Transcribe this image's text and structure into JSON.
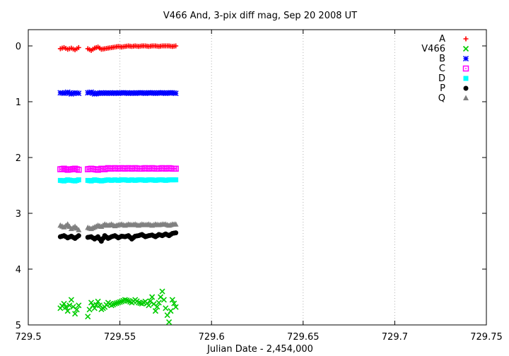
{
  "chart_data": {
    "type": "scatter",
    "title": "V466 And,  3-pix diff mag, Sep 20 2008 UT",
    "xlabel": "Julian Date - 2,454,000",
    "ylabel": "",
    "xlim": [
      729.5,
      729.75
    ],
    "ylim": [
      5,
      0
    ],
    "y_inverted": true,
    "grid": true,
    "legend_position": "top-right",
    "x_ticks": [
      "729.5",
      "729.55",
      "729.6",
      "729.65",
      "729.7",
      "729.75"
    ],
    "y_ticks": [
      "0",
      "1",
      "2",
      "3",
      "4",
      "5"
    ],
    "series": [
      {
        "name": "A",
        "color": "#ff0000",
        "marker": "plus",
        "x_start": 729.5175,
        "x_end": 729.5805,
        "gap": [
          729.5275,
          729.5325
        ],
        "y": [
          0.05,
          0.03,
          0.06,
          0.04,
          0.07,
          0.03,
          0.05,
          0.08,
          0.04,
          0.02,
          0.06,
          0.05,
          0.04,
          0.03,
          0.02,
          0.01,
          0.02,
          0.01,
          0.0,
          0.01,
          0.0,
          0.01,
          0.0,
          0.0,
          0.01,
          0.0,
          0.0,
          0.01,
          0.0,
          0.0,
          0.0,
          0.01,
          0.0
        ]
      },
      {
        "name": "V466",
        "color": "#00cc00",
        "marker": "x",
        "x_start": 729.5175,
        "x_end": 729.5805,
        "gap": [
          729.5275,
          729.5325
        ],
        "y": [
          4.7,
          4.62,
          4.75,
          4.55,
          4.8,
          4.65,
          4.85,
          4.6,
          4.7,
          4.58,
          4.72,
          4.68,
          4.6,
          4.65,
          4.62,
          4.6,
          4.58,
          4.55,
          4.57,
          4.6,
          4.55,
          4.6,
          4.62,
          4.58,
          4.65,
          4.5,
          4.75,
          4.6,
          4.4,
          4.7,
          4.95,
          4.55,
          4.68
        ]
      },
      {
        "name": "B",
        "color": "#0000ff",
        "marker": "star",
        "x_start": 729.5175,
        "x_end": 729.5805,
        "gap": [
          729.5275,
          729.5325
        ],
        "y": [
          0.84,
          0.85,
          0.83,
          0.86,
          0.84,
          0.85,
          0.84,
          0.83,
          0.86,
          0.85,
          0.84,
          0.85,
          0.84,
          0.85,
          0.84,
          0.85,
          0.84,
          0.84,
          0.85,
          0.84,
          0.85,
          0.84,
          0.84,
          0.85,
          0.84,
          0.84,
          0.85,
          0.84,
          0.84,
          0.85,
          0.84,
          0.84,
          0.85
        ]
      },
      {
        "name": "C",
        "color": "#ff00ff",
        "marker": "square-dot",
        "x_start": 729.5175,
        "x_end": 729.5805,
        "gap": [
          729.5275,
          729.5325
        ],
        "y": [
          2.21,
          2.2,
          2.22,
          2.21,
          2.2,
          2.22,
          2.21,
          2.2,
          2.21,
          2.22,
          2.2,
          2.21,
          2.19,
          2.2,
          2.19,
          2.2,
          2.19,
          2.2,
          2.19,
          2.2,
          2.19,
          2.2,
          2.2,
          2.19,
          2.2,
          2.19,
          2.2,
          2.2,
          2.19,
          2.2,
          2.19,
          2.2,
          2.2
        ]
      },
      {
        "name": "D",
        "color": "#00ffff",
        "marker": "square",
        "x_start": 729.5175,
        "x_end": 729.5805,
        "gap": [
          729.5275,
          729.5325
        ],
        "y": [
          2.41,
          2.42,
          2.4,
          2.41,
          2.42,
          2.4,
          2.41,
          2.42,
          2.4,
          2.41,
          2.42,
          2.41,
          2.4,
          2.41,
          2.4,
          2.41,
          2.4,
          2.4,
          2.41,
          2.4,
          2.41,
          2.4,
          2.4,
          2.41,
          2.4,
          2.4,
          2.41,
          2.4,
          2.4,
          2.41,
          2.4,
          2.4,
          2.4
        ]
      },
      {
        "name": "P",
        "color": "#000000",
        "marker": "circle",
        "x_start": 729.5175,
        "x_end": 729.5805,
        "gap": [
          729.5275,
          729.5325
        ],
        "y": [
          3.42,
          3.4,
          3.44,
          3.41,
          3.45,
          3.4,
          3.43,
          3.42,
          3.46,
          3.42,
          3.5,
          3.4,
          3.45,
          3.42,
          3.4,
          3.44,
          3.41,
          3.42,
          3.4,
          3.46,
          3.41,
          3.4,
          3.38,
          3.42,
          3.4,
          3.39,
          3.42,
          3.38,
          3.4,
          3.37,
          3.4,
          3.36,
          3.35
        ]
      },
      {
        "name": "Q",
        "color": "#808080",
        "marker": "triangle",
        "x_start": 729.5175,
        "x_end": 729.5805,
        "gap": [
          729.5275,
          729.5325
        ],
        "y": [
          3.22,
          3.25,
          3.2,
          3.28,
          3.24,
          3.3,
          3.26,
          3.28,
          3.25,
          3.22,
          3.24,
          3.2,
          3.22,
          3.2,
          3.23,
          3.21,
          3.2,
          3.22,
          3.2,
          3.21,
          3.2,
          3.22,
          3.2,
          3.21,
          3.2,
          3.22,
          3.2,
          3.21,
          3.2,
          3.2,
          3.22,
          3.2,
          3.2
        ]
      }
    ]
  }
}
